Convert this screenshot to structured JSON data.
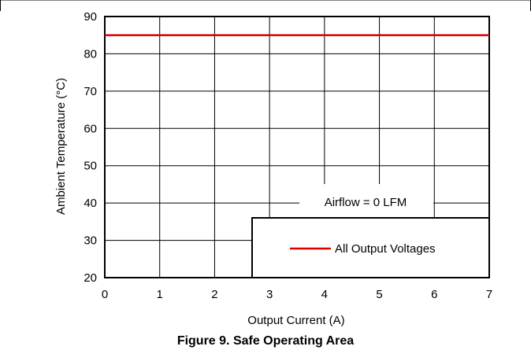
{
  "chart_data": {
    "type": "line",
    "caption": "Figure 9. Safe Operating Area",
    "xlabel": "Output Current (A)",
    "ylabel": "Ambient Temperature (°C)",
    "xlim": [
      0,
      7
    ],
    "ylim": [
      20,
      90
    ],
    "x_ticks": [
      0,
      1,
      2,
      3,
      4,
      5,
      6,
      7
    ],
    "y_ticks": [
      20,
      30,
      40,
      50,
      60,
      70,
      80,
      90
    ],
    "grid": true,
    "annotation": "Airflow = 0 LFM",
    "legend_position": "bottom-right",
    "series": [
      {
        "name": "All Output Voltages",
        "color": "#e00000",
        "x": [
          0,
          7
        ],
        "y": [
          85,
          85
        ]
      }
    ]
  }
}
